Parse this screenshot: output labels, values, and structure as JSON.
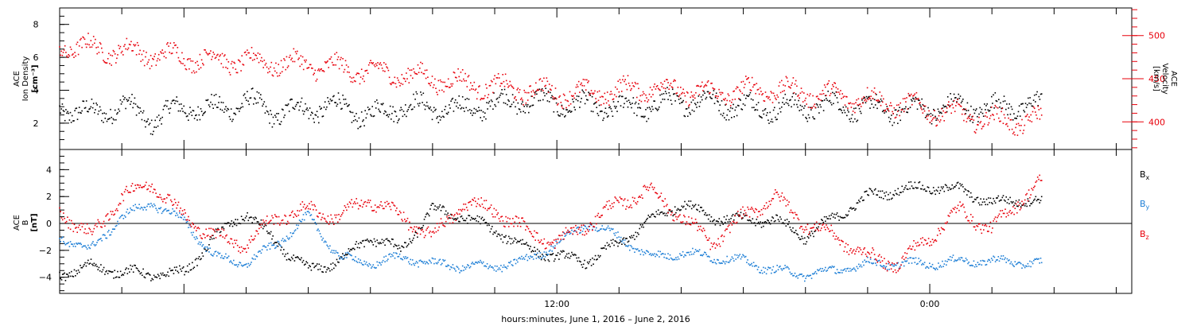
{
  "chart_data": [
    {
      "type": "scatter",
      "panel": "top",
      "ylabel_left": {
        "line1": "ACE",
        "line2": "Ion Density",
        "units": "[cm⁻³]"
      },
      "ylabel_right": {
        "line1": "ACE",
        "line2": "Velocity",
        "units": "[km/s]"
      },
      "x_hours_range": [
        -4.0,
        30.5
      ],
      "y_left_range": [
        0.4,
        9.0
      ],
      "y_left_ticks": [
        2,
        4,
        6,
        8
      ],
      "y_right_range": [
        368,
        532
      ],
      "y_right_ticks": [
        400,
        450,
        500
      ],
      "grid": false,
      "series": [
        {
          "name": "",
          "axis": "left",
          "color": "#000000",
          "x": [
            -4.0,
            -3.0,
            -2.0,
            -1.0,
            0.0,
            1.0,
            2.0,
            3.0,
            4.0,
            5.0,
            6.0,
            7.0,
            8.0,
            9.0,
            10.0,
            11.0,
            12.0,
            13.0,
            14.0,
            15.0,
            16.0,
            17.0,
            18.0,
            19.0,
            20.0,
            21.0,
            22.0,
            23.0,
            24.0,
            25.0,
            26.0,
            27.0,
            27.6
          ],
          "values": [
            3.0,
            2.5,
            3.1,
            2.2,
            3.0,
            2.8,
            3.3,
            2.6,
            2.9,
            3.0,
            2.4,
            3.1,
            2.9,
            2.8,
            3.2,
            3.4,
            3.2,
            3.0,
            2.9,
            3.0,
            3.4,
            3.3,
            3.0,
            2.9,
            3.0,
            3.1,
            2.9,
            2.8,
            2.9,
            3.0,
            2.9,
            3.1,
            3.0
          ],
          "spread": 1.0
        },
        {
          "name": "",
          "axis": "right",
          "color": "#e8000b",
          "x": [
            -4.0,
            -3.0,
            -2.0,
            -1.0,
            0.0,
            1.0,
            2.0,
            3.0,
            4.0,
            5.0,
            6.0,
            7.0,
            8.0,
            9.0,
            10.0,
            11.0,
            12.0,
            13.0,
            14.0,
            15.0,
            16.0,
            17.0,
            18.0,
            19.0,
            20.0,
            21.0,
            22.0,
            23.0,
            24.0,
            25.0,
            26.0,
            27.0,
            27.6
          ],
          "values": [
            488,
            485,
            482,
            478,
            475,
            472,
            470,
            468,
            466,
            462,
            458,
            455,
            450,
            445,
            440,
            437,
            434,
            432,
            436,
            440,
            437,
            432,
            436,
            438,
            433,
            430,
            426,
            420,
            414,
            408,
            402,
            400,
            403
          ],
          "spread": 18
        }
      ]
    },
    {
      "type": "scatter",
      "panel": "bottom",
      "ylabel_left": {
        "line1": "ACE",
        "line2": "B",
        "units": "[nT]"
      },
      "x_hours_range": [
        -4.0,
        30.5
      ],
      "y_range": [
        -5.2,
        5.5
      ],
      "y_ticks": [
        -4,
        -2,
        0,
        2,
        4
      ],
      "zero_line": true,
      "grid": false,
      "legend_position": "right",
      "series": [
        {
          "name": "Bx",
          "label_main": "B",
          "label_sub": "x",
          "color": "#000000",
          "x": [
            -4.0,
            -3.0,
            -2.0,
            -1.0,
            0.0,
            1.0,
            2.0,
            3.0,
            4.0,
            5.0,
            6.0,
            7.0,
            8.0,
            9.0,
            10.0,
            11.0,
            12.0,
            13.0,
            14.0,
            15.0,
            16.0,
            17.0,
            18.0,
            19.0,
            20.0,
            21.0,
            22.0,
            23.0,
            24.0,
            25.0,
            26.0,
            27.0,
            27.6
          ],
          "values": [
            -3.8,
            -3.2,
            -3.6,
            -3.8,
            -3.7,
            -1.0,
            0.8,
            -1.5,
            -3.5,
            -2.8,
            -1.0,
            -2.0,
            1.0,
            0.5,
            -0.5,
            -1.8,
            -2.5,
            -2.8,
            -1.5,
            0.2,
            1.5,
            0.5,
            0.2,
            0.3,
            -1.0,
            0.5,
            2.0,
            2.5,
            2.7,
            2.5,
            1.5,
            1.8,
            1.5
          ],
          "spread": 0.6
        },
        {
          "name": "By",
          "label_main": "B",
          "label_sub": "y",
          "color": "#1e7fd6",
          "x": [
            -4.0,
            -3.0,
            -2.0,
            -1.0,
            0.0,
            1.0,
            2.0,
            3.0,
            4.0,
            5.0,
            6.0,
            7.0,
            8.0,
            9.0,
            10.0,
            11.0,
            12.0,
            13.0,
            14.0,
            15.0,
            16.0,
            17.0,
            18.0,
            19.0,
            20.0,
            21.0,
            22.0,
            23.0,
            24.0,
            25.0,
            26.0,
            27.0,
            27.6
          ],
          "values": [
            -1.0,
            -2.0,
            0.5,
            1.5,
            0.2,
            -2.5,
            -3.0,
            -1.5,
            0.5,
            -2.5,
            -3.0,
            -2.5,
            -3.0,
            -3.2,
            -3.2,
            -2.8,
            -1.5,
            0.0,
            -1.0,
            -2.5,
            -2.2,
            -2.5,
            -2.8,
            -3.5,
            -3.8,
            -3.5,
            -3.0,
            -3.0,
            -3.0,
            -2.8,
            -2.8,
            -2.9,
            -3.0
          ],
          "spread": 0.5
        },
        {
          "name": "Bz",
          "label_main": "B",
          "label_sub": "z",
          "color": "#e8000b",
          "x": [
            -4.0,
            -3.0,
            -2.0,
            -1.0,
            0.0,
            1.0,
            2.0,
            3.0,
            4.0,
            5.0,
            6.0,
            7.0,
            8.0,
            9.0,
            10.0,
            11.0,
            12.0,
            13.0,
            14.0,
            15.0,
            16.0,
            17.0,
            18.0,
            19.0,
            20.0,
            21.0,
            22.0,
            23.0,
            24.0,
            25.0,
            26.0,
            27.0,
            27.6
          ],
          "values": [
            1.0,
            -1.0,
            2.0,
            3.0,
            0.5,
            -1.0,
            -1.5,
            0.5,
            1.0,
            0.5,
            1.8,
            0.5,
            -1.0,
            1.5,
            1.0,
            -0.5,
            -1.5,
            0.0,
            1.5,
            2.5,
            0.5,
            -1.5,
            0.5,
            2.0,
            0.0,
            -1.0,
            -2.5,
            -3.0,
            -1.0,
            1.0,
            -0.5,
            2.0,
            3.0
          ],
          "spread": 0.8
        }
      ]
    }
  ],
  "x_axis": {
    "tick_labels": [
      "12:00",
      "0:00"
    ],
    "tick_label_hours": [
      12,
      24
    ],
    "label": "hours:minutes, June  1, 2016 – June  2, 2016"
  }
}
